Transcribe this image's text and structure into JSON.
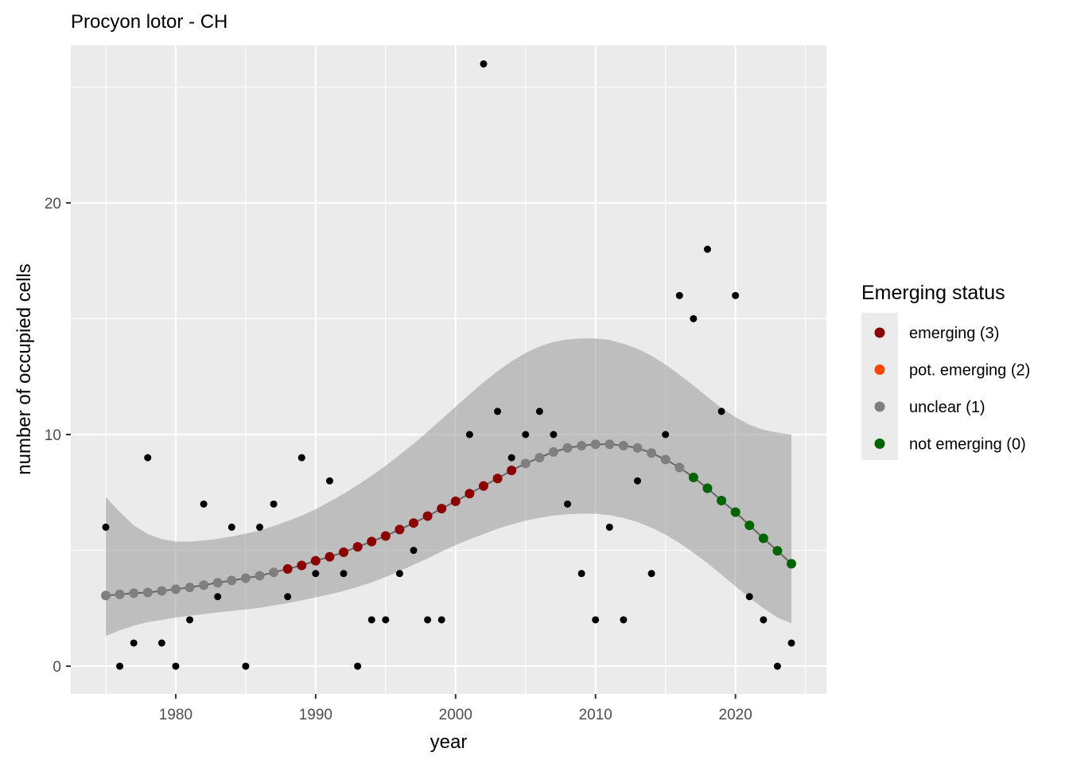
{
  "chart_data": {
    "type": "scatter",
    "title": "Procyon lotor - CH",
    "xlabel": "year",
    "ylabel": "number of occupied cells",
    "xlim": [
      1972.5,
      2026.5
    ],
    "ylim": [
      -1.2,
      26.8
    ],
    "x_ticks": [
      1980,
      1990,
      2000,
      2010,
      2020
    ],
    "y_ticks": [
      0,
      10,
      20
    ],
    "grid": true,
    "legend": {
      "title": "Emerging status",
      "position": "right",
      "items": [
        {
          "label": "emerging (3)",
          "color": "#8B0000"
        },
        {
          "label": "pot. emerging (2)",
          "color": "#FF4500"
        },
        {
          "label": "unclear (1)",
          "color": "#7F7F7F"
        },
        {
          "label": "not emerging (0)",
          "color": "#006400"
        }
      ]
    },
    "observed": {
      "name": "",
      "color": "#000000",
      "x": [
        1975,
        1976,
        1977,
        1978,
        1979,
        1980,
        1981,
        1982,
        1983,
        1984,
        1985,
        1986,
        1987,
        1988,
        1989,
        1990,
        1991,
        1992,
        1993,
        1994,
        1995,
        1996,
        1997,
        1998,
        1999,
        2001,
        2002,
        2003,
        2004,
        2005,
        2006,
        2007,
        2008,
        2009,
        2010,
        2011,
        2012,
        2013,
        2014,
        2015,
        2016,
        2017,
        2018,
        2019,
        2020,
        2021,
        2022,
        2023,
        2024
      ],
      "y": [
        6,
        0,
        1,
        9,
        1,
        0,
        2,
        7,
        3,
        6,
        0,
        6,
        7,
        3,
        9,
        4,
        8,
        4,
        0,
        2,
        2,
        4,
        5,
        2,
        2,
        10,
        26,
        11,
        9,
        10,
        11,
        10,
        7,
        4,
        2,
        6,
        2,
        8,
        4,
        10,
        16,
        15,
        18,
        11,
        16,
        3,
        2,
        0,
        1
      ]
    },
    "fitted": {
      "x": [
        1975,
        1976,
        1977,
        1978,
        1979,
        1980,
        1981,
        1982,
        1983,
        1984,
        1985,
        1986,
        1987,
        1988,
        1989,
        1990,
        1991,
        1992,
        1993,
        1994,
        1995,
        1996,
        1997,
        1998,
        1999,
        2000,
        2001,
        2002,
        2003,
        2004,
        2005,
        2006,
        2007,
        2008,
        2009,
        2010,
        2011,
        2012,
        2013,
        2014,
        2015,
        2016,
        2017,
        2018,
        2019,
        2020,
        2021,
        2022,
        2023,
        2024
      ],
      "y": [
        3.05,
        3.1,
        3.15,
        3.18,
        3.25,
        3.32,
        3.4,
        3.5,
        3.6,
        3.7,
        3.8,
        3.9,
        4.05,
        4.2,
        4.35,
        4.55,
        4.72,
        4.92,
        5.15,
        5.38,
        5.62,
        5.9,
        6.18,
        6.48,
        6.8,
        7.12,
        7.45,
        7.78,
        8.1,
        8.45,
        8.75,
        9.0,
        9.25,
        9.42,
        9.52,
        9.58,
        9.58,
        9.52,
        9.42,
        9.2,
        8.92,
        8.58,
        8.15,
        7.68,
        7.15,
        6.65,
        6.08,
        5.52,
        4.98,
        4.42
      ],
      "status": [
        1,
        1,
        1,
        1,
        1,
        1,
        1,
        1,
        1,
        1,
        1,
        1,
        1,
        3,
        3,
        3,
        3,
        3,
        3,
        3,
        3,
        3,
        3,
        3,
        3,
        3,
        3,
        3,
        3,
        3,
        1,
        1,
        1,
        1,
        1,
        1,
        1,
        1,
        1,
        1,
        1,
        1,
        0,
        0,
        0,
        0,
        0,
        0,
        0,
        0
      ],
      "ci_lower": [
        1.3,
        1.55,
        1.75,
        1.9,
        2.0,
        2.1,
        2.18,
        2.25,
        2.32,
        2.38,
        2.45,
        2.52,
        2.62,
        2.72,
        2.84,
        2.97,
        3.1,
        3.25,
        3.42,
        3.62,
        3.85,
        4.1,
        4.38,
        4.65,
        4.95,
        5.22,
        5.48,
        5.7,
        5.93,
        6.12,
        6.28,
        6.4,
        6.5,
        6.56,
        6.58,
        6.58,
        6.52,
        6.4,
        6.22,
        5.98,
        5.68,
        5.32,
        4.9,
        4.45,
        3.95,
        3.45,
        2.95,
        2.5,
        2.1,
        1.85
      ],
      "ci_upper": [
        7.3,
        6.65,
        6.08,
        5.7,
        5.48,
        5.38,
        5.38,
        5.42,
        5.5,
        5.6,
        5.72,
        5.86,
        6.05,
        6.26,
        6.5,
        6.78,
        7.1,
        7.44,
        7.82,
        8.22,
        8.65,
        9.12,
        9.6,
        10.12,
        10.66,
        11.2,
        11.74,
        12.26,
        12.73,
        13.16,
        13.52,
        13.8,
        14.0,
        14.1,
        14.15,
        14.15,
        14.08,
        13.92,
        13.7,
        13.4,
        13.02,
        12.58,
        12.12,
        11.62,
        11.15,
        10.75,
        10.42,
        10.2,
        10.08,
        10.0
      ]
    }
  }
}
